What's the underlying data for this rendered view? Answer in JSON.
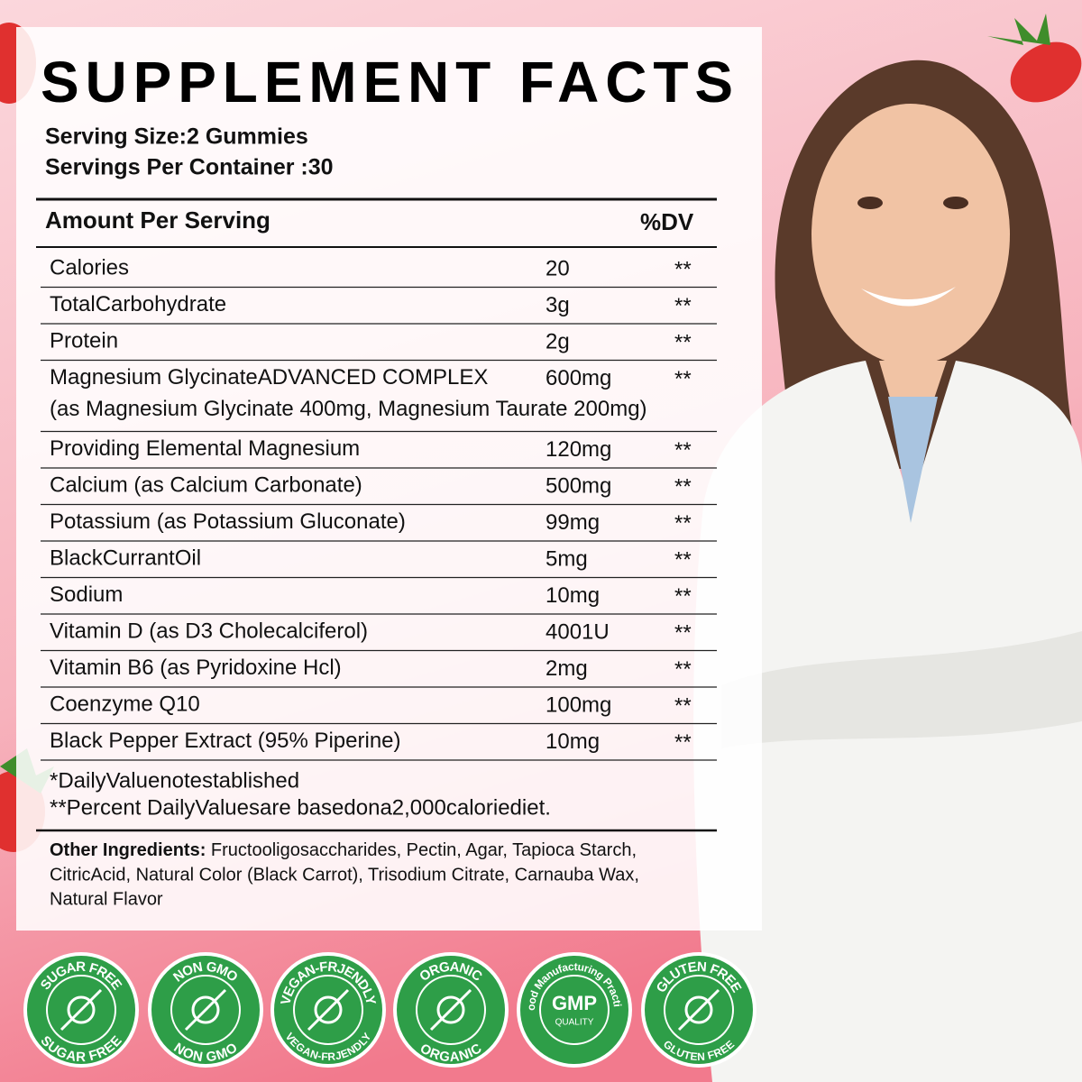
{
  "title": "SUPPLEMENT FACTS",
  "serving_size": "Serving Size:2 Gummies",
  "servings_per_container": "Servings Per Container :30",
  "table": {
    "header": {
      "amount": "Amount Per Serving",
      "dv": "%DV"
    },
    "rows": [
      {
        "name": "Calories",
        "amount": "20",
        "dv": "**"
      },
      {
        "name": "TotalCarbohydrate",
        "amount": "3g",
        "dv": "**"
      },
      {
        "name": "Protein",
        "amount": "2g",
        "dv": "**"
      },
      {
        "name": "Magnesium GlycinateADVANCED COMPLEX",
        "amount": "600mg",
        "dv": "**",
        "detail": "(as Magnesium Glycinate 400mg, Magnesium Taurate 200mg)"
      },
      {
        "name": "Providing Elemental Magnesium",
        "amount": "120mg",
        "dv": "**"
      },
      {
        "name": "Calcium (as Calcium Carbonate)",
        "amount": "500mg",
        "dv": "**"
      },
      {
        "name": "Potassium (as Potassium Gluconate)",
        "amount": "99mg",
        "dv": "**"
      },
      {
        "name": "BlackCurrantOil",
        "amount": "5mg",
        "dv": "**"
      },
      {
        "name": "Sodium",
        "amount": "10mg",
        "dv": "**"
      },
      {
        "name": "Vitamin D (as D3 Cholecalciferol)",
        "amount": "4001U",
        "dv": "**"
      },
      {
        "name": "Vitamin B6 (as Pyridoxine Hcl)",
        "amount": "2mg",
        "dv": "**"
      },
      {
        "name": "Coenzyme Q10",
        "amount": "100mg",
        "dv": "**"
      },
      {
        "name": "Black Pepper Extract (95% Piperine)",
        "amount": "10mg",
        "dv": "**"
      }
    ]
  },
  "footnotes": [
    "*DailyValuenotestablished",
    "**Percent DailyValuesare basedona2,000caloriediet."
  ],
  "other_ingredients": {
    "label": "Other Ingredients:",
    "lines": [
      " Fructooligosaccharides, Pectin, Agar, Tapioca Starch,",
      "CitricAcid, Natural Color (Black Carrot), Trisodium Citrate, Carnauba Wax,",
      "Natural Flavor"
    ]
  },
  "badges": [
    {
      "top": "SUGAR FREE",
      "bottom": "SUGAR FREE"
    },
    {
      "top": "NON GMO",
      "bottom": "NON GMO"
    },
    {
      "top": "VEGAN-FRJENDLY",
      "bottom": "VEGAN-FRJENDLY"
    },
    {
      "top": "ORGANIC",
      "bottom": "ORGANIC"
    },
    {
      "top": "Good Manufacturing Practice",
      "center": "GMP",
      "sub": "QUALITY"
    },
    {
      "top": "GLUTEN FREE",
      "bottom": "GLUTEN FREE"
    }
  ]
}
